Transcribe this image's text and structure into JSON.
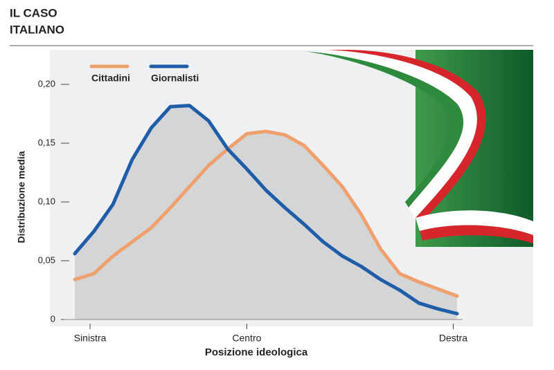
{
  "chart_data": {
    "type": "line",
    "title": [
      "IL CASO",
      "ITALIANO"
    ],
    "x_label": "Posizione ideologica",
    "y_label": "Distribuzione media",
    "x": [
      0,
      5,
      10,
      15,
      20,
      25,
      30,
      35,
      40,
      45,
      50,
      55,
      60,
      65,
      70,
      75,
      80,
      85,
      90,
      95,
      100
    ],
    "xlim": [
      0,
      100
    ],
    "xticks": [
      {
        "value": 4,
        "label": "Sinistra"
      },
      {
        "value": 45,
        "label": "Centro"
      },
      {
        "value": 99,
        "label": "Destra"
      }
    ],
    "ylim": [
      0,
      0.2
    ],
    "yticks": [
      0,
      {
        "value": 0.05,
        "label": "0,05"
      },
      {
        "value": 0.1,
        "label": "0,10"
      },
      {
        "value": 0.15,
        "label": "0,15"
      },
      {
        "value": 0.2,
        "label": "0,20"
      }
    ],
    "area_fill": "#d4d5d6",
    "series": [
      {
        "name": "Cittadini",
        "color": "#f0a06c",
        "values": [
          0.034,
          0.039,
          0.054,
          0.066,
          0.078,
          0.095,
          0.113,
          0.131,
          0.145,
          0.158,
          0.16,
          0.157,
          0.148,
          0.131,
          0.113,
          0.089,
          0.06,
          0.039,
          0.032,
          0.026,
          0.02
        ]
      },
      {
        "name": "Giornalisti",
        "color": "#1f5da8",
        "values": [
          0.056,
          0.075,
          0.098,
          0.136,
          0.163,
          0.181,
          0.182,
          0.169,
          0.145,
          0.128,
          0.11,
          0.095,
          0.081,
          0.066,
          0.054,
          0.045,
          0.034,
          0.025,
          0.014,
          0.009,
          0.005
        ]
      }
    ],
    "legend": "top-left"
  }
}
